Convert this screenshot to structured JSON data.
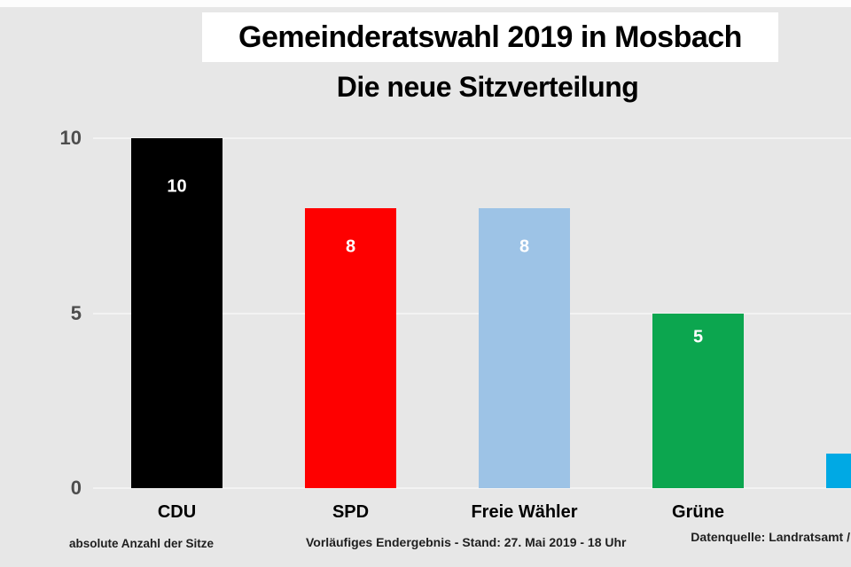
{
  "title": "Gemeinderatswahl 2019 in Mosbach",
  "subtitle": "Die neue Sitzverteilung",
  "footer": {
    "left": "absolute Anzahl der Sitze",
    "center": "Vorläufiges Endergebnis - Stand: 27. Mai 2019  - 18 Uhr",
    "right": "Datenquelle: Landratsamt /"
  },
  "chart_data": {
    "type": "bar",
    "title": "Gemeinderatswahl 2019 in Mosbach",
    "subtitle": "Die neue Sitzverteilung",
    "categories": [
      "CDU",
      "SPD",
      "Freie Wähler",
      "Grüne",
      ""
    ],
    "values": [
      10,
      8,
      8,
      5,
      1
    ],
    "bar_colors": [
      "#000000",
      "#fe0000",
      "#9dc3e6",
      "#0ca64f",
      "#00a9e4"
    ],
    "value_labels": [
      "10",
      "8",
      "8",
      "5",
      ""
    ],
    "value_label_color": "#ffffff",
    "xlabel": "",
    "ylabel": "",
    "yticks": [
      0,
      5,
      10
    ],
    "ylim": [
      0,
      10
    ],
    "grid": true,
    "legend": "none",
    "background": "#e7e7e7",
    "note_last_bar": "fifth bar clipped at right image edge, category label not visible"
  }
}
